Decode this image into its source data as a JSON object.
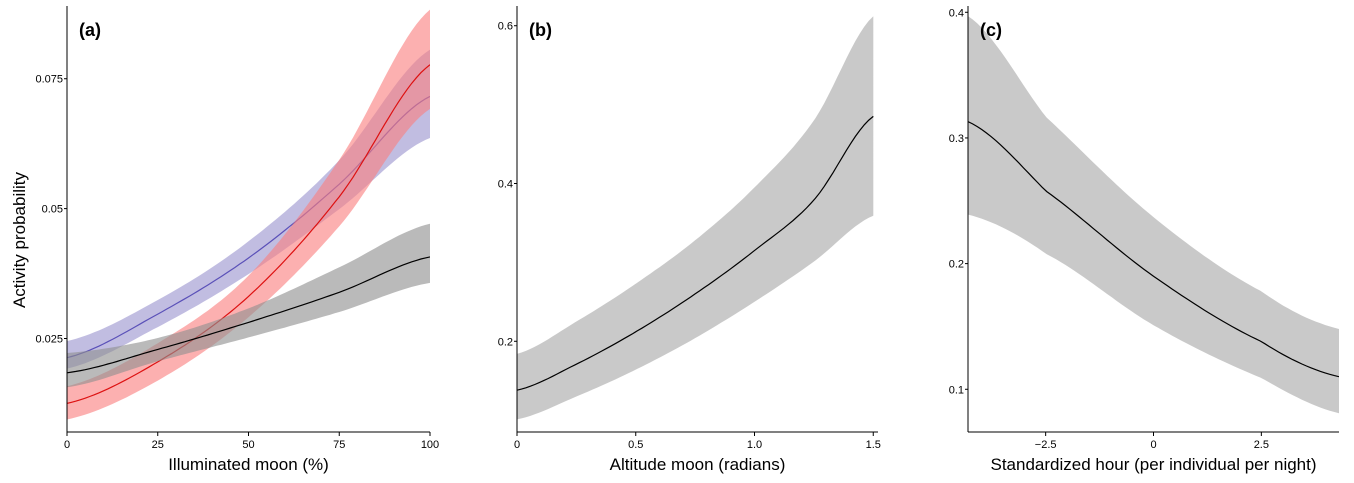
{
  "figure": {
    "ylabel": "Activity probability"
  },
  "chart_data": [
    {
      "type": "line",
      "panel_label": "(a)",
      "title": "",
      "xlabel": "Illuminated moon (%)",
      "ylabel": "Activity probability",
      "xlim": [
        0,
        100
      ],
      "ylim": [
        0.007,
        0.089
      ],
      "x_ticks": [
        0,
        25,
        50,
        75,
        100
      ],
      "x_tick_labels": [
        "0",
        "25",
        "50",
        "75",
        "100"
      ],
      "y_ticks": [
        0.025,
        0.05,
        0.075
      ],
      "y_tick_labels": [
        "0.025",
        "0.05",
        "0.075"
      ],
      "grid": false,
      "legend": "none",
      "x": [
        0,
        25,
        50,
        75,
        100
      ],
      "series": [
        {
          "color": "#5a50b8",
          "band_color": "#9b94cf",
          "values": [
            0.0213,
            0.0297,
            0.0405,
            0.0547,
            0.0716
          ],
          "lower": [
            0.0192,
            0.0272,
            0.0374,
            0.0499,
            0.0636
          ],
          "upper": [
            0.0245,
            0.0324,
            0.0437,
            0.0593,
            0.0806
          ]
        },
        {
          "color": "#dd1111",
          "band_color": "#fa8080",
          "values": [
            0.0125,
            0.0205,
            0.0331,
            0.0523,
            0.0777
          ],
          "lower": [
            0.0094,
            0.0169,
            0.0291,
            0.0466,
            0.0692
          ],
          "upper": [
            0.0158,
            0.0241,
            0.0371,
            0.0594,
            0.0883
          ]
        },
        {
          "color": "#000000",
          "band_color": "#8f8f8f",
          "values": [
            0.0184,
            0.0229,
            0.0281,
            0.0339,
            0.0407
          ],
          "lower": [
            0.0156,
            0.0206,
            0.0252,
            0.0301,
            0.0357
          ],
          "upper": [
            0.0222,
            0.0251,
            0.0308,
            0.0387,
            0.0471
          ]
        }
      ]
    },
    {
      "type": "line",
      "panel_label": "(b)",
      "title": "",
      "xlabel": "Altitude moon (radians)",
      "xlim": [
        0,
        1.52
      ],
      "ylim": [
        0.085,
        0.625
      ],
      "x_ticks": [
        0,
        0.5,
        1.0,
        1.5
      ],
      "x_tick_labels": [
        "0",
        "0.5",
        "1.0",
        "1.5"
      ],
      "y_ticks": [
        0.2,
        0.4,
        0.6
      ],
      "y_tick_labels": [
        "0.2",
        "0.4",
        "0.6"
      ],
      "grid": false,
      "legend": "none",
      "x": [
        0,
        0.25,
        0.5,
        0.75,
        1.0,
        1.25,
        1.5
      ],
      "series": [
        {
          "color": "#000000",
          "band_color": "#a8a8a8",
          "values": [
            0.138,
            0.171,
            0.212,
            0.26,
            0.315,
            0.379,
            0.485
          ],
          "lower": [
            0.101,
            0.13,
            0.164,
            0.204,
            0.25,
            0.301,
            0.359
          ],
          "upper": [
            0.184,
            0.225,
            0.273,
            0.328,
            0.395,
            0.48,
            0.612
          ]
        }
      ]
    },
    {
      "type": "line",
      "panel_label": "(c)",
      "title": "",
      "xlabel": "Standardized hour (per individual per night)",
      "xlim": [
        -4.3,
        4.3
      ],
      "ylim": [
        0.066,
        0.405
      ],
      "x_ticks": [
        -2.5,
        0,
        2.5
      ],
      "x_tick_labels": [
        "−2.5",
        "0",
        "2.5"
      ],
      "y_ticks": [
        0.1,
        0.2,
        0.3,
        0.4
      ],
      "y_tick_labels": [
        "0.1",
        "0.2",
        "0.3",
        "0.4"
      ],
      "grid": false,
      "legend": "none",
      "x": [
        -4.3,
        -2.5,
        0,
        2.5,
        4.3
      ],
      "series": [
        {
          "color": "#000000",
          "band_color": "#a8a8a8",
          "values": [
            0.313,
            0.258,
            0.19,
            0.138,
            0.11
          ],
          "lower": [
            0.239,
            0.208,
            0.151,
            0.109,
            0.081
          ],
          "upper": [
            0.397,
            0.317,
            0.237,
            0.178,
            0.148
          ]
        }
      ]
    }
  ]
}
